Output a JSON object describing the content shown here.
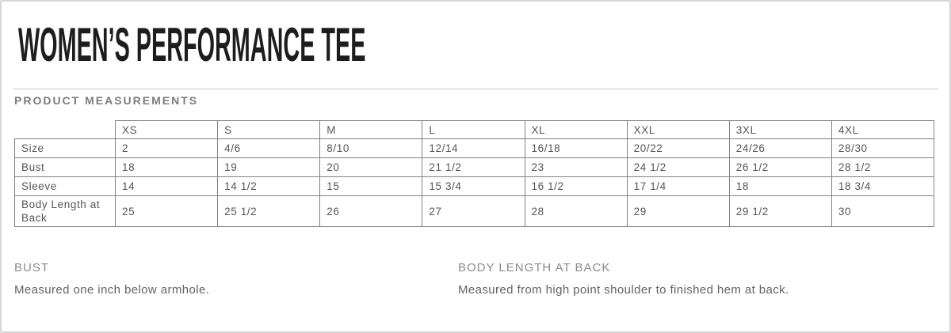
{
  "page": {
    "title": "WOMEN’S PERFORMANCE TEE",
    "section_heading": "PRODUCT MEASUREMENTS"
  },
  "measurements_table": {
    "column_headers": [
      "XS",
      "S",
      "M",
      "L",
      "XL",
      "XXL",
      "3XL",
      "4XL"
    ],
    "rows": [
      {
        "label": "Size",
        "values": [
          "2",
          "4/6",
          "8/10",
          "12/14",
          "16/18",
          "20/22",
          "24/26",
          "28/30"
        ]
      },
      {
        "label": "Bust",
        "values": [
          "18",
          "19",
          "20",
          "21 1/2",
          "23",
          "24 1/2",
          "26 1/2",
          "28 1/2"
        ]
      },
      {
        "label": "Sleeve",
        "values": [
          "14",
          "14 1/2",
          "15",
          "15 3/4",
          "16 1/2",
          "17 1/4",
          "18",
          "18 3/4"
        ]
      },
      {
        "label": "Body Length at Back",
        "values": [
          "25",
          "25 1/2",
          "26",
          "27",
          "28",
          "29",
          "29 1/2",
          "30"
        ]
      }
    ]
  },
  "notes": [
    {
      "heading": "BUST",
      "description": "Measured one inch below armhole."
    },
    {
      "heading": "BODY LENGTH AT BACK",
      "description": "Measured from high point shoulder to finished hem at back."
    }
  ],
  "colors": {
    "title_text": "#1d1d1d",
    "muted_heading": "#7c7c7c",
    "table_border": "#828282",
    "table_text": "#55565a",
    "divider": "#cccccc",
    "page_border": "#d6d6d6"
  }
}
